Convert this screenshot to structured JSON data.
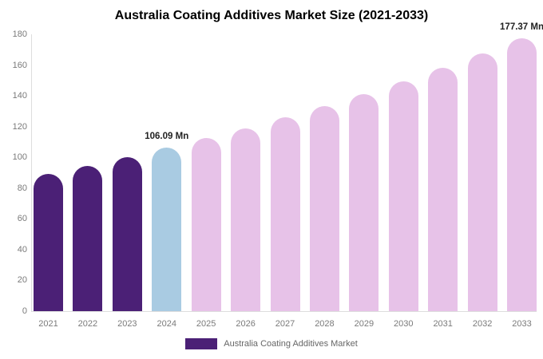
{
  "title": "Australia Coating Additives Market Size (2021-2033)",
  "colors": {
    "bar_primary": "#4B2076",
    "bar_highlight": "#A9CBE2",
    "bar_forecast": "#E7C2E8",
    "axis_line": "#dddddd",
    "tick_text": "#7a7a7a",
    "annotation_text": "#222222",
    "legend_text": "#666666"
  },
  "legend": {
    "label": "Australia Coating Additives Market",
    "swatch_color": "#4B2076"
  },
  "y_axis": {
    "ticks": [
      "0",
      "20",
      "40",
      "60",
      "80",
      "100",
      "120",
      "140",
      "160",
      "180"
    ]
  },
  "annotations": [
    {
      "category": "2024",
      "text": "106.09 Mn"
    },
    {
      "category": "2033",
      "text": "177.37 Mn"
    }
  ],
  "chart_data": {
    "type": "bar",
    "title": "Australia Coating Additives Market Size (2021-2033)",
    "categories": [
      "2021",
      "2022",
      "2023",
      "2024",
      "2025",
      "2026",
      "2027",
      "2028",
      "2029",
      "2030",
      "2031",
      "2032",
      "2033"
    ],
    "values": [
      89.39,
      94.64,
      100.2,
      106.09,
      112.33,
      118.93,
      125.92,
      133.31,
      141.15,
      149.44,
      158.23,
      167.52,
      177.37
    ],
    "bar_colors": [
      "#4B2076",
      "#4B2076",
      "#4B2076",
      "#A9CBE2",
      "#E7C2E8",
      "#E7C2E8",
      "#E7C2E8",
      "#E7C2E8",
      "#E7C2E8",
      "#E7C2E8",
      "#E7C2E8",
      "#E7C2E8",
      "#E7C2E8"
    ],
    "data_labels": {
      "2024": "106.09 Mn",
      "2033": "177.37 Mn"
    },
    "xlabel": "",
    "ylabel": "",
    "ylim": [
      0,
      180
    ],
    "grid": false,
    "legend_position": "bottom"
  }
}
